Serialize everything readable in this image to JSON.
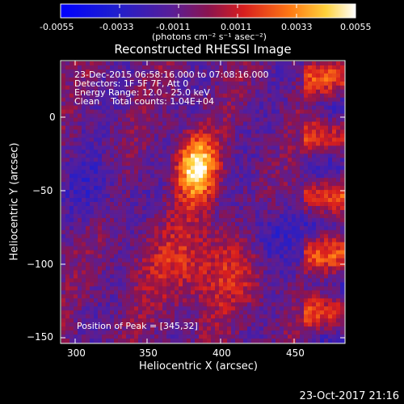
{
  "colorbar": {
    "tick_labels": [
      "-0.0055",
      "-0.0033",
      "-0.0011",
      "0.0011",
      "0.0033",
      "0.0055"
    ],
    "units": "(photons cm⁻² s⁻¹ asec⁻²)",
    "range": [
      -0.0055,
      0.0055
    ]
  },
  "plot": {
    "title": "Reconstructed RHESSI Image",
    "info_lines": [
      "23-Dec-2015 06:58:16.000 to 07:08:16.000",
      "Detectors: 1F 5F 7F, Att 0",
      "Energy Range: 12.0 - 25.0 keV",
      "Clean    Total counts: 1.04E+04"
    ],
    "peak_label": "Position of Peak = [345,32]",
    "xlabel": "Heliocentric X (arcsec)",
    "ylabel": "Heliocentric Y (arcsec)",
    "x_ticks": [
      "300",
      "350",
      "400",
      "450"
    ],
    "y_ticks": [
      "0",
      "−50",
      "−100",
      "−150"
    ]
  },
  "timestamp": "23-Oct-2017 21:16",
  "chart_data": {
    "type": "heatmap",
    "title": "Reconstructed RHESSI Image",
    "xlabel": "Heliocentric X (arcsec)",
    "ylabel": "Heliocentric Y (arcsec)",
    "xlim": [
      288,
      482
    ],
    "ylim": [
      -153,
      35
    ],
    "colorbar_range": [
      -0.0055,
      0.0055
    ],
    "peak_position": [
      345,
      32
    ]
  },
  "colors": {
    "background": "#000000",
    "text": "#ffffff"
  }
}
